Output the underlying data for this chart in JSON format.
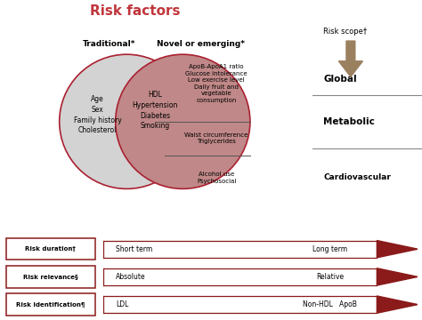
{
  "title": "Risk factors",
  "title_color": "#c0363c",
  "bg_color": "#f5f5f5",
  "left_label": "Traditional*",
  "right_label": "Novel or emerging*",
  "left_only_text": "Age\nSex\nFamily history\nCholesterol",
  "intersection_text": "HDL\nHypertension\nDiabetes\nSmoking",
  "right_upper_text": "ApoB-ApoA1 ratio\nGlucose intolerance\nLow exercise level\nDaily fruit and\nvegetable\nconsumption",
  "right_mid_text": "Waist circumference\nTriglycerides",
  "right_lower_text": "Alcohol use\nPsychosocial",
  "scope_label": "Risk scope†",
  "scope_arrow_color": "#9b8060",
  "scope_global": "Global",
  "scope_metabolic": "Metabolic",
  "scope_cardiovascular": "Cardiovascular",
  "row_labels": [
    "Risk duration†",
    "Risk relevance§",
    "Risk identification¶"
  ],
  "row_left_text": [
    "Short term",
    "Absolute",
    "LDL"
  ],
  "row_right_text": [
    "Long term",
    "Relative",
    "Non-HDL   ApoB"
  ],
  "dark_red": "#8b1a1a",
  "circle_edge": "#aa2030",
  "left_face": "#d3d3d3",
  "right_face": "#c08888"
}
